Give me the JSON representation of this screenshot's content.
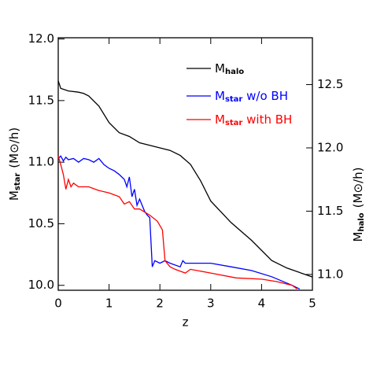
{
  "chart_data": {
    "type": "line",
    "xlabel": "z",
    "ylabel": {
      "symbol": "M",
      "subscript": "star",
      "unit": "(M⊙/h)"
    },
    "y2label": {
      "symbol": "M",
      "subscript": "halo",
      "unit": "(M⊙/h)"
    },
    "xlim": [
      0,
      5
    ],
    "xticks": [
      0,
      1,
      2,
      3,
      4,
      5
    ],
    "ylim": [
      9.96,
      12.01
    ],
    "yticks": [
      {
        "value": 10.0,
        "label": "10.0"
      },
      10.5,
      {
        "value": 11.0,
        "label": "11.0"
      },
      11.5,
      {
        "value": 12.0,
        "label": "12.0"
      }
    ],
    "y2lim": [
      10.875,
      12.87
    ],
    "y2ticks": [
      {
        "value": 11.0,
        "label": "11.0"
      },
      11.5,
      {
        "value": 12.0,
        "label": "12.0"
      },
      12.5
    ],
    "series": [
      {
        "name": {
          "symbol": "M",
          "subscript": "halo"
        },
        "color": "#000000",
        "axis": "y2",
        "x": [
          0,
          0.05,
          0.2,
          0.4,
          0.5,
          0.6,
          0.8,
          1.0,
          1.2,
          1.4,
          1.6,
          1.8,
          2.0,
          2.2,
          2.4,
          2.6,
          2.8,
          3.0,
          3.4,
          3.8,
          4.2,
          4.5,
          5.0
        ],
        "values": [
          12.53,
          12.47,
          12.45,
          12.44,
          12.43,
          12.41,
          12.33,
          12.2,
          12.12,
          12.09,
          12.04,
          12.02,
          12.0,
          11.98,
          11.94,
          11.87,
          11.74,
          11.58,
          11.41,
          11.27,
          11.11,
          11.05,
          10.98
        ]
      },
      {
        "name": {
          "symbol": "M",
          "subscript": "star",
          "suffix": " w/o BH"
        },
        "color": "#0000ff",
        "axis": "y",
        "x": [
          0,
          0.05,
          0.1,
          0.15,
          0.2,
          0.3,
          0.4,
          0.5,
          0.6,
          0.7,
          0.8,
          0.9,
          1.0,
          1.1,
          1.2,
          1.3,
          1.35,
          1.4,
          1.45,
          1.5,
          1.55,
          1.6,
          1.7,
          1.75,
          1.8,
          1.85,
          1.9,
          2.0,
          2.1,
          2.2,
          2.4,
          2.45,
          2.5,
          3.0,
          3.4,
          3.8,
          4.2,
          4.6,
          4.75
        ],
        "values": [
          11.03,
          11.05,
          11.01,
          11.04,
          11.02,
          11.03,
          11.0,
          11.03,
          11.02,
          11.0,
          11.03,
          10.98,
          10.95,
          10.93,
          10.9,
          10.86,
          10.8,
          10.88,
          10.72,
          10.78,
          10.65,
          10.7,
          10.6,
          10.57,
          10.55,
          10.15,
          10.2,
          10.18,
          10.2,
          10.18,
          10.15,
          10.2,
          10.18,
          10.18,
          10.15,
          10.12,
          10.07,
          10.0,
          9.97
        ]
      },
      {
        "name": {
          "symbol": "M",
          "subscript": "star",
          "suffix": " with BH"
        },
        "color": "#ff0000",
        "axis": "y",
        "x": [
          0,
          0.05,
          0.1,
          0.15,
          0.2,
          0.25,
          0.3,
          0.4,
          0.6,
          0.8,
          1.0,
          1.2,
          1.3,
          1.4,
          1.5,
          1.6,
          1.8,
          1.95,
          2.05,
          2.1,
          2.2,
          2.3,
          2.5,
          2.6,
          3.0,
          3.5,
          4.0,
          4.3,
          4.6,
          4.7
        ],
        "values": [
          11.05,
          10.98,
          10.9,
          10.78,
          10.86,
          10.8,
          10.83,
          10.8,
          10.8,
          10.77,
          10.75,
          10.72,
          10.66,
          10.68,
          10.62,
          10.62,
          10.57,
          10.52,
          10.45,
          10.2,
          10.15,
          10.13,
          10.1,
          10.13,
          10.1,
          10.06,
          10.05,
          10.03,
          10.0,
          9.97
        ]
      }
    ]
  }
}
